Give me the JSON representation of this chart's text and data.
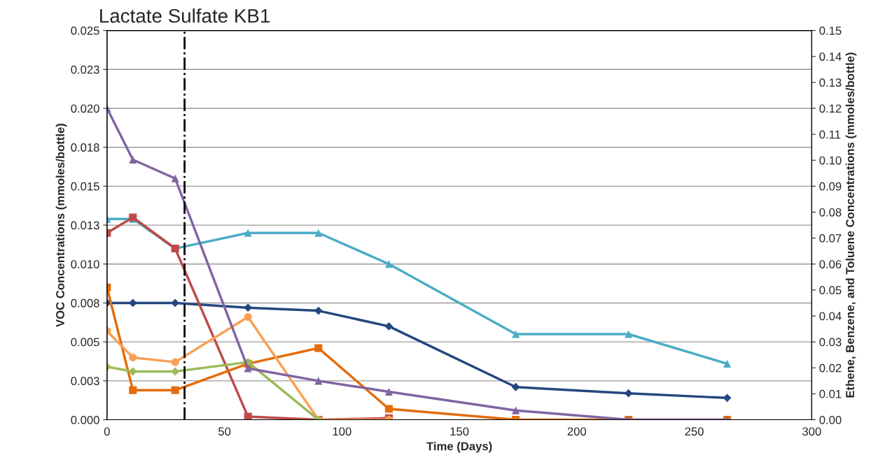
{
  "chart_data": {
    "type": "line",
    "xlabel": "Time (Days)",
    "ylabel": "VOC Concentrations (mmoles/bottle)",
    "y2label": "Ethene, Benzene, and Toluene Concentrations (mmoles/bottle)",
    "xlim": [
      0,
      300
    ],
    "xticks": [
      0,
      50,
      100,
      150,
      200,
      250,
      300
    ],
    "ylim": [
      0,
      0.025
    ],
    "yticks": [
      {
        "value": 0,
        "label": "0.000"
      },
      {
        "value": 0.0025,
        "label": "0.003"
      },
      {
        "value": 0.005,
        "label": "0.005"
      },
      {
        "value": 0.0075,
        "label": "0.008"
      },
      {
        "value": 0.01,
        "label": "0.010"
      },
      {
        "value": 0.0125,
        "label": "0.013"
      },
      {
        "value": 0.015,
        "label": "0.015"
      },
      {
        "value": 0.0175,
        "label": "0.018"
      },
      {
        "value": 0.02,
        "label": "0.020"
      },
      {
        "value": 0.0225,
        "label": "0.023"
      },
      {
        "value": 0.025,
        "label": "0.025"
      }
    ],
    "y2lim": [
      0,
      0.15
    ],
    "y2ticks": [
      {
        "value": 0,
        "label": "0.00"
      },
      {
        "value": 0.01,
        "label": "0.01"
      },
      {
        "value": 0.02,
        "label": "0.02"
      },
      {
        "value": 0.03,
        "label": "0.03"
      },
      {
        "value": 0.04,
        "label": "0.04"
      },
      {
        "value": 0.05,
        "label": "0.05"
      },
      {
        "value": 0.06,
        "label": "0.06"
      },
      {
        "value": 0.07,
        "label": "0.07"
      },
      {
        "value": 0.08,
        "label": "0.08"
      },
      {
        "value": 0.09,
        "label": "0.09"
      },
      {
        "value": 0.1,
        "label": "0.10"
      },
      {
        "value": 0.11,
        "label": "0.11"
      },
      {
        "value": 0.12,
        "label": "0.12"
      },
      {
        "value": 0.13,
        "label": "0.13"
      },
      {
        "value": 0.14,
        "label": "0.14"
      },
      {
        "value": 0.15,
        "label": "0.15"
      }
    ],
    "grid": "y",
    "legend": false,
    "ref_lines": [
      {
        "axis": "x",
        "value": 33,
        "label": "Lactate Sulfate KB1",
        "color": "#000000",
        "line_style": "dashdot"
      }
    ],
    "series": [
      {
        "color": "#4bacc6",
        "marker": "triangle",
        "x": [
          0,
          11,
          29,
          60,
          90,
          120,
          174,
          222,
          264
        ],
        "values": [
          0.0129,
          0.0129,
          0.011,
          0.012,
          0.012,
          0.01,
          0.0055,
          0.0055,
          0.0036
        ]
      },
      {
        "color": "#24477f",
        "marker": "diamond",
        "x": [
          0,
          11,
          29,
          60,
          90,
          120,
          174,
          222,
          264
        ],
        "values": [
          0.0075,
          0.0075,
          0.0075,
          0.0072,
          0.007,
          0.006,
          0.0021,
          0.0017,
          0.0014
        ]
      },
      {
        "color": "#be4b48",
        "marker": "square",
        "x": [
          0,
          11,
          29,
          60,
          90,
          120
        ],
        "values": [
          0.012,
          0.013,
          0.011,
          0.0002,
          0,
          0.0001
        ]
      },
      {
        "color": "#e46c0a",
        "marker": "square",
        "x": [
          0,
          11,
          29,
          60,
          90,
          120,
          174,
          222,
          264
        ],
        "values": [
          0.0085,
          0.0019,
          0.0019,
          0.0036,
          0.0046,
          0.0007,
          0,
          0,
          0
        ]
      },
      {
        "color": "#f9a055",
        "marker": "circle",
        "x": [
          0,
          11,
          29,
          60,
          90,
          120
        ],
        "values": [
          0.0057,
          0.004,
          0.0037,
          0.0066,
          0,
          0
        ]
      },
      {
        "color": "#9bbb59",
        "marker": "diamond",
        "x": [
          0,
          11,
          29,
          60,
          90
        ],
        "values": [
          0.0034,
          0.0031,
          0.0031,
          0.0037,
          0
        ]
      },
      {
        "color": "#8064a2",
        "marker": "triangle",
        "x": [
          0,
          11,
          29,
          60,
          90,
          120,
          174,
          222,
          264
        ],
        "values": [
          0.02,
          0.0167,
          0.0155,
          0.0033,
          0.0025,
          0.0018,
          0.0006,
          0,
          0
        ]
      }
    ]
  }
}
